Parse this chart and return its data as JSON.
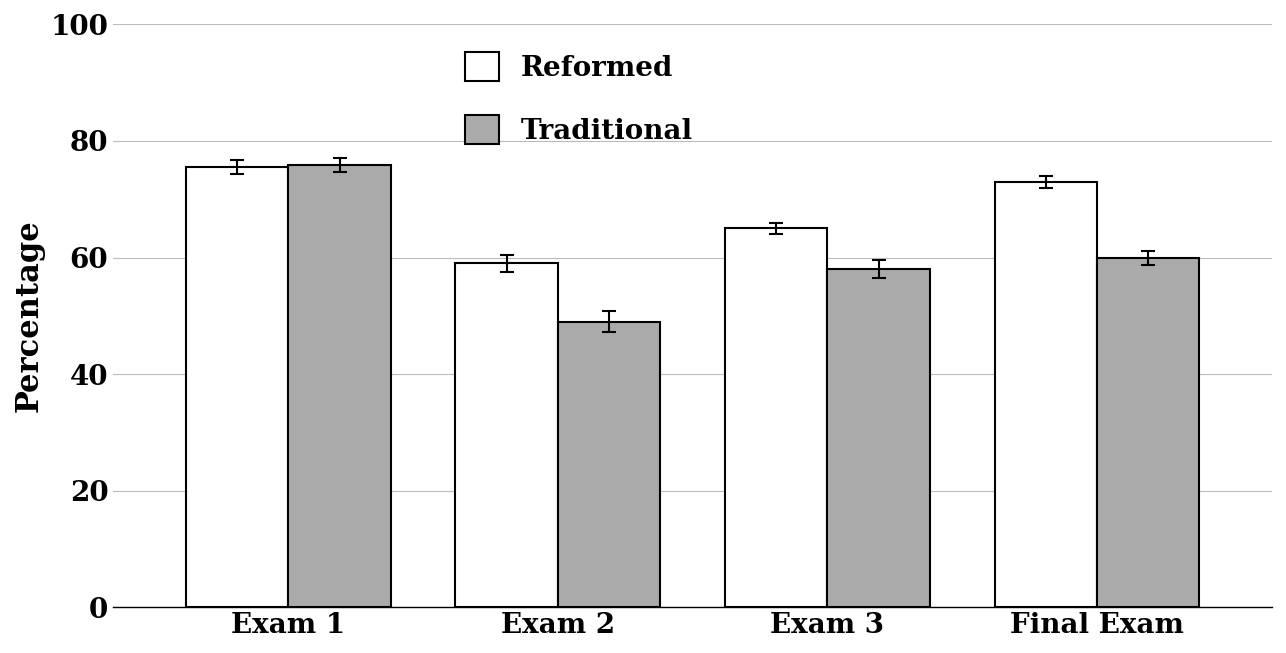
{
  "categories": [
    "Exam 1",
    "Exam 2",
    "Exam 3",
    "Final Exam"
  ],
  "reformed_values": [
    75.5,
    59,
    65,
    73
  ],
  "traditional_values": [
    75.8,
    49,
    58,
    60
  ],
  "reformed_errors": [
    1.2,
    1.5,
    1.0,
    1.0
  ],
  "traditional_errors": [
    1.2,
    1.8,
    1.5,
    1.2
  ],
  "reformed_color": "#ffffff",
  "traditional_color": "#aaaaaa",
  "bar_edge_color": "#000000",
  "error_color": "#000000",
  "ylabel": "Percentage",
  "ylim": [
    0,
    100
  ],
  "yticks": [
    0,
    20,
    40,
    60,
    80,
    100
  ],
  "legend_labels": [
    "Reformed",
    "Traditional"
  ],
  "bar_width": 0.38,
  "label_fontsize": 22,
  "tick_fontsize": 20,
  "legend_fontsize": 20,
  "background_color": "#ffffff",
  "grid_color": "#bbbbbb"
}
